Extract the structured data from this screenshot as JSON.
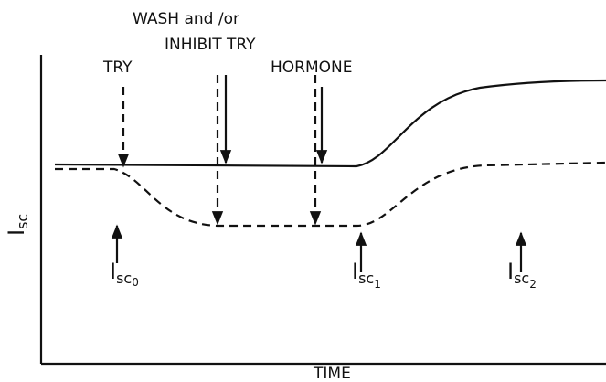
{
  "header": {
    "line1": "WASH and /or",
    "line2": "INHIBIT TRY"
  },
  "arrows": {
    "try": "TRY",
    "hormone": "HORMONE"
  },
  "axes": {
    "y_label": {
      "main": "I",
      "sub": "sc"
    },
    "x_label": "TIME"
  },
  "labels": [
    {
      "main": "I",
      "sub": "sc",
      "index": "0"
    },
    {
      "main": "I",
      "sub": "sc",
      "index": "1"
    },
    {
      "main": "I",
      "sub": "sc",
      "index": "2"
    }
  ]
}
